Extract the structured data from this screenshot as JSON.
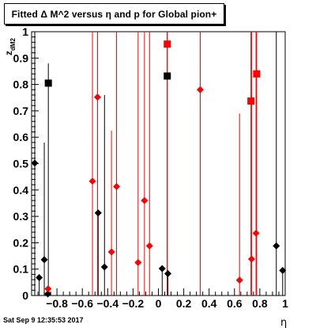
{
  "title": "Fitted Δ M^2 versus η and p for Global pion+",
  "timestamp": "Sat Sep  9 12:35:53 2017",
  "chart_data": {
    "type": "scatter",
    "title": "Fitted Δ M^2 versus η and p for Global pion+",
    "xlabel": "η",
    "ylabel": "z_dM2",
    "xlim": [
      -1,
      1
    ],
    "ylim": [
      0,
      1
    ],
    "x_ticks": [
      -0.8,
      -0.6,
      -0.4,
      -0.2,
      0,
      0.2,
      0.4,
      0.6,
      0.8,
      1
    ],
    "x_tick_labels": [
      "−0.8",
      "−0.6",
      "−0.4",
      "−0.2",
      "0",
      "0.2",
      "0.4",
      "0.6",
      "0.8",
      "1"
    ],
    "y_ticks": [
      0,
      0.1,
      0.2,
      0.3,
      0.4,
      0.5,
      0.6,
      0.7,
      0.8,
      0.9,
      1
    ],
    "y_tick_labels": [
      "0",
      "0.1",
      "0.2",
      "0.3",
      "0.4",
      "0.5",
      "0.6",
      "0.7",
      "0.8",
      "0.9",
      "1"
    ],
    "grid": false,
    "series": [
      {
        "color": "#000000",
        "points": [
          {
            "x": -0.975,
            "y": 0.502,
            "yerr": [
              0.502,
              0.498
            ],
            "marker": "diamond"
          },
          {
            "x": -0.94,
            "y": 0.068,
            "yerr": [
              0.068,
              0
            ],
            "marker": "diamond"
          },
          {
            "x": -0.9,
            "y": 0.136,
            "yerr": [
              0.136,
              0.444
            ],
            "marker": "diamond"
          },
          {
            "x": -0.872,
            "y": 0.006,
            "yerr": [
              0.006,
              0
            ],
            "marker": "diamond"
          },
          {
            "x": -0.868,
            "y": 0.805,
            "yerr": [
              0.805,
              0.075
            ],
            "marker": "square"
          },
          {
            "x": -0.475,
            "y": 0.313,
            "yerr": [
              0.313,
              0
            ],
            "marker": "diamond"
          },
          {
            "x": -0.425,
            "y": 0.108,
            "yerr": [
              0.108,
              0.652
            ],
            "marker": "diamond"
          },
          {
            "x": 0.03,
            "y": 0.102,
            "yerr": [
              0.102,
              0
            ],
            "marker": "diamond"
          },
          {
            "x": 0.07,
            "y": 0.832,
            "yerr": [
              0.832,
              0.168
            ],
            "marker": "square"
          },
          {
            "x": 0.075,
            "y": 0.083,
            "yerr": [
              0.083,
              0
            ],
            "marker": "diamond"
          },
          {
            "x": 0.93,
            "y": 0.188,
            "yerr": [
              0.188,
              0.812
            ],
            "marker": "diamond"
          },
          {
            "x": 0.98,
            "y": 0.095,
            "yerr": [
              0.095,
              0
            ],
            "marker": "diamond"
          }
        ]
      },
      {
        "color": "#ff0000",
        "points": [
          {
            "x": -0.87,
            "y": 0.025,
            "yerr": [
              0.025,
              0
            ],
            "marker": "diamond"
          },
          {
            "x": -0.52,
            "y": 0.433,
            "yerr": [
              0.433,
              0.567
            ],
            "marker": "diamond"
          },
          {
            "x": -0.48,
            "y": 0.752,
            "yerr": [
              0.752,
              0.248
            ],
            "marker": "diamond"
          },
          {
            "x": -0.37,
            "y": 0.165,
            "yerr": [
              0.165,
              0.46
            ],
            "marker": "diamond"
          },
          {
            "x": -0.33,
            "y": 0.413,
            "yerr": [
              0.413,
              0.587
            ],
            "marker": "diamond"
          },
          {
            "x": -0.16,
            "y": 0.125,
            "yerr": [
              0.125,
              0.875
            ],
            "marker": "diamond"
          },
          {
            "x": -0.11,
            "y": 0.36,
            "yerr": [
              0.36,
              0.64
            ],
            "marker": "diamond"
          },
          {
            "x": -0.07,
            "y": 0.188,
            "yerr": [
              0.188,
              0.812
            ],
            "marker": "diamond"
          },
          {
            "x": 0.07,
            "y": 0.953,
            "yerr": [
              0.953,
              0.047
            ],
            "marker": "square"
          },
          {
            "x": 0.33,
            "y": 0.78,
            "yerr": [
              0.78,
              0.22
            ],
            "marker": "diamond"
          },
          {
            "x": 0.64,
            "y": 0.058,
            "yerr": [
              0.058,
              0.632
            ],
            "marker": "diamond"
          },
          {
            "x": 0.73,
            "y": 0.737,
            "yerr": [
              0.737,
              0.263
            ],
            "marker": "square"
          },
          {
            "x": 0.735,
            "y": 0.138,
            "yerr": [
              0.138,
              0.862
            ],
            "marker": "diamond"
          },
          {
            "x": 0.77,
            "y": 0.236,
            "yerr": [
              0.236,
              0.764
            ],
            "marker": "diamond"
          },
          {
            "x": 0.775,
            "y": 0.84,
            "yerr": [
              0.84,
              0.16
            ],
            "marker": "square"
          }
        ]
      }
    ]
  }
}
